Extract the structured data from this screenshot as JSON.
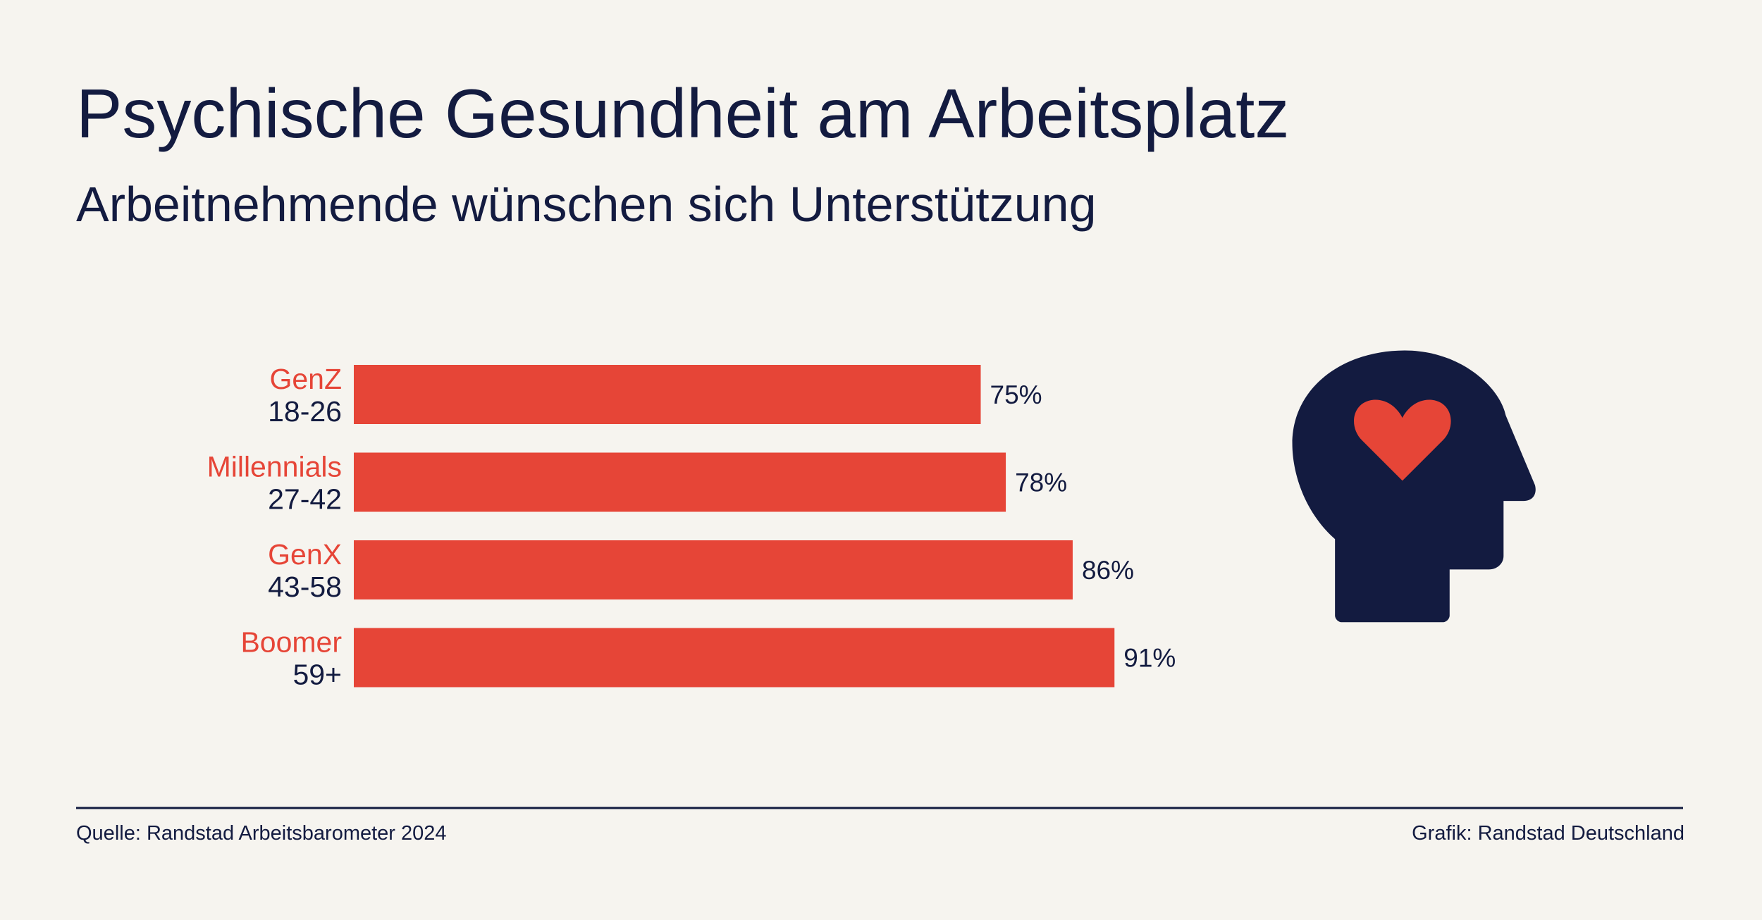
{
  "chart_data": {
    "type": "bar",
    "orientation": "horizontal",
    "title": "Psychische Gesundheit am Arbeitsplatz",
    "subtitle": "Arbeitnehmende wünschen sich Unterstützung",
    "categories": [
      "GenZ",
      "Millennials",
      "GenX",
      "Boomer"
    ],
    "category_sublabels": [
      "18-26",
      "27-42",
      "43-58",
      "59+"
    ],
    "values": [
      75,
      78,
      86,
      91
    ],
    "value_labels": [
      "75%",
      "78%",
      "86%",
      "91%"
    ],
    "color": "#e64537",
    "category_color": "#e64537",
    "source": "Quelle: Randstad Arbeitsbarometer 2024",
    "credit": "Grafik: Randstad Deutschland"
  }
}
